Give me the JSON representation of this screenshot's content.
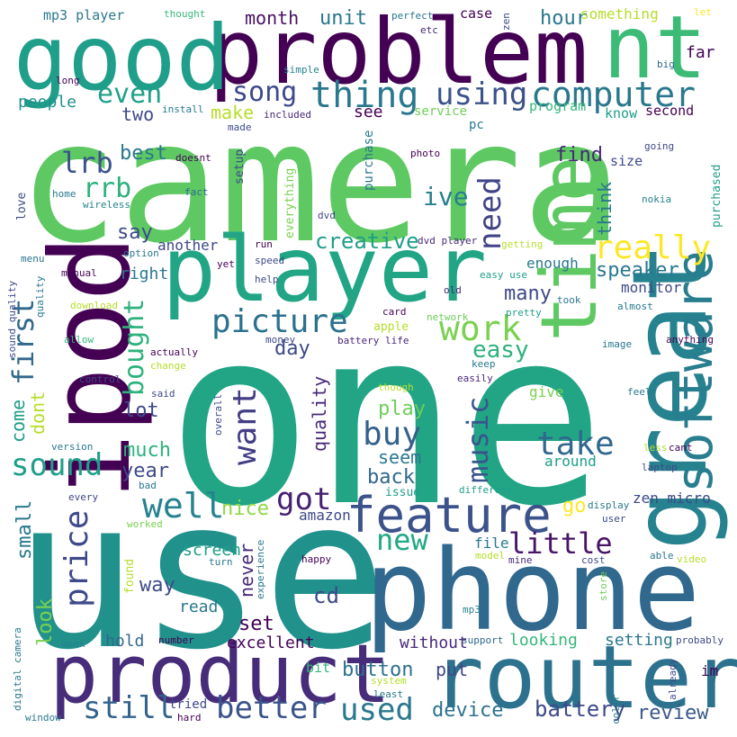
{
  "palette": {
    "background": "#ffffff",
    "p1": "#440154",
    "p2": "#482878",
    "p3": "#3e4989",
    "p4": "#31688e",
    "p5": "#26828e",
    "p6": "#1f9e89",
    "p7": "#35b779",
    "p8": "#6ece58",
    "p9": "#b5de2b",
    "p10": "#fde725"
  },
  "words": [
    {
      "text": "camera",
      "color": "#5ec962"
    },
    {
      "text": "one",
      "color": "#21a585"
    },
    {
      "text": "use",
      "color": "#21918c"
    },
    {
      "text": "phone",
      "color": "#31688e"
    },
    {
      "text": "problem",
      "color": "#440154"
    },
    {
      "text": "ipod",
      "color": "#440154"
    },
    {
      "text": "player",
      "color": "#21a585"
    },
    {
      "text": "great",
      "color": "#26828e"
    },
    {
      "text": "router",
      "color": "#2c728e"
    },
    {
      "text": "product",
      "color": "#472c7a"
    },
    {
      "text": "good",
      "color": "#1f9e89"
    },
    {
      "text": "nt",
      "color": "#3bbb75"
    },
    {
      "text": "time",
      "color": "#5ec962"
    },
    {
      "text": "software",
      "color": "#287d8e"
    },
    {
      "text": "feature",
      "color": "#3b528b"
    },
    {
      "text": "thing",
      "color": "#2a788e"
    },
    {
      "text": "computer",
      "color": "#2a788e"
    },
    {
      "text": "using",
      "color": "#3b528b"
    },
    {
      "text": "really",
      "color": "#fde725"
    },
    {
      "text": "picture",
      "color": "#2c728e"
    },
    {
      "text": "work",
      "color": "#7ad151"
    },
    {
      "text": "even",
      "color": "#1fa088"
    },
    {
      "text": "song",
      "color": "#3e4989"
    },
    {
      "text": "lrb",
      "color": "#3b528b"
    },
    {
      "text": "rrb",
      "color": "#2db27d"
    },
    {
      "text": "first",
      "color": "#31688e"
    },
    {
      "text": "need",
      "color": "#414487"
    },
    {
      "text": "ive",
      "color": "#277f8e"
    },
    {
      "text": "creative",
      "color": "#1f9e89"
    },
    {
      "text": "say",
      "color": "#3e4989"
    },
    {
      "text": "bought",
      "color": "#2db27d"
    },
    {
      "text": "want",
      "color": "#433e85"
    },
    {
      "text": "music",
      "color": "#39568c"
    },
    {
      "text": "buy",
      "color": "#34618d"
    },
    {
      "text": "take",
      "color": "#31688e"
    },
    {
      "text": "easy",
      "color": "#2db27d"
    },
    {
      "text": "got",
      "color": "#482173"
    },
    {
      "text": "well",
      "color": "#26828e"
    },
    {
      "text": "sound",
      "color": "#1f9e89"
    },
    {
      "text": "price",
      "color": "#3e4989"
    },
    {
      "text": "new",
      "color": "#22a884"
    },
    {
      "text": "little",
      "color": "#481467"
    },
    {
      "text": "nice",
      "color": "#8fd744"
    },
    {
      "text": "better",
      "color": "#3b528b"
    },
    {
      "text": "still",
      "color": "#33638d"
    },
    {
      "text": "used",
      "color": "#2a788e"
    },
    {
      "text": "battery",
      "color": "#3e4989"
    },
    {
      "text": "button",
      "color": "#2d708e"
    },
    {
      "text": "device",
      "color": "#2c728e"
    },
    {
      "text": "review",
      "color": "#38588c"
    },
    {
      "text": "speaker",
      "color": "#2a788e"
    },
    {
      "text": "many",
      "color": "#3e4989"
    },
    {
      "text": "quality",
      "color": "#482878"
    },
    {
      "text": "day",
      "color": "#3e4989"
    },
    {
      "text": "month",
      "color": "#471063"
    },
    {
      "text": "unit",
      "color": "#2a788e"
    },
    {
      "text": "hour",
      "color": "#2a788e"
    },
    {
      "text": "two",
      "color": "#3e4989"
    },
    {
      "text": "make",
      "color": "#b5de2b"
    },
    {
      "text": "people",
      "color": "#21918c"
    },
    {
      "text": "best",
      "color": "#2a788e"
    },
    {
      "text": "find",
      "color": "#482878"
    },
    {
      "text": "think",
      "color": "#2a788e"
    },
    {
      "text": "come",
      "color": "#1f9e89"
    },
    {
      "text": "dont",
      "color": "#b5de2b"
    },
    {
      "text": "lot",
      "color": "#3e4989"
    },
    {
      "text": "much",
      "color": "#2db27d"
    },
    {
      "text": "year",
      "color": "#3e4989"
    },
    {
      "text": "small",
      "color": "#2a788e"
    },
    {
      "text": "look",
      "color": "#7ad151"
    },
    {
      "text": "play",
      "color": "#6ece58"
    },
    {
      "text": "seem",
      "color": "#2a788e"
    },
    {
      "text": "back",
      "color": "#31688e"
    },
    {
      "text": "go",
      "color": "#fde725"
    },
    {
      "text": "zen micro",
      "color": "#3e4989"
    },
    {
      "text": "cd",
      "color": "#3e4989"
    },
    {
      "text": "set",
      "color": "#440154"
    },
    {
      "text": "never",
      "color": "#482878"
    },
    {
      "text": "way",
      "color": "#3e4989"
    },
    {
      "text": "read",
      "color": "#2a788e"
    },
    {
      "text": "screen",
      "color": "#1f9e89"
    },
    {
      "text": "hold",
      "color": "#31688e"
    },
    {
      "text": "excellent",
      "color": "#440154"
    },
    {
      "text": "without",
      "color": "#482878"
    },
    {
      "text": "looking",
      "color": "#35b779"
    },
    {
      "text": "setting",
      "color": "#2a788e"
    },
    {
      "text": "put",
      "color": "#3e4989"
    },
    {
      "text": "file",
      "color": "#2a788e"
    },
    {
      "text": "amazon",
      "color": "#3e4989"
    },
    {
      "text": "around",
      "color": "#1f9e89"
    },
    {
      "text": "give",
      "color": "#7ad151"
    },
    {
      "text": "enough",
      "color": "#2a788e"
    },
    {
      "text": "monitor",
      "color": "#3e4989"
    },
    {
      "text": "right",
      "color": "#2a788e"
    },
    {
      "text": "another",
      "color": "#3e4989"
    },
    {
      "text": "mp3 player",
      "color": "#2a788e"
    },
    {
      "text": "thought",
      "color": "#35b779"
    },
    {
      "text": "perfect",
      "color": "#2a788e"
    },
    {
      "text": "etc",
      "color": "#482878"
    },
    {
      "text": "case",
      "color": "#440154"
    },
    {
      "text": "zen",
      "color": "#3e4989"
    },
    {
      "text": "something",
      "color": "#b5de2b"
    },
    {
      "text": "let",
      "color": "#fde725"
    },
    {
      "text": "far",
      "color": "#440154"
    },
    {
      "text": "big",
      "color": "#31688e"
    },
    {
      "text": "simple",
      "color": "#26828e"
    },
    {
      "text": "long",
      "color": "#440154"
    },
    {
      "text": "install",
      "color": "#2a788e"
    },
    {
      "text": "included",
      "color": "#482878"
    },
    {
      "text": "see",
      "color": "#440154"
    },
    {
      "text": "service",
      "color": "#6ece58"
    },
    {
      "text": "program",
      "color": "#35b779"
    },
    {
      "text": "know",
      "color": "#1f9e89"
    },
    {
      "text": "second",
      "color": "#440154"
    },
    {
      "text": "pc",
      "color": "#2a788e"
    },
    {
      "text": "made",
      "color": "#3e4989"
    },
    {
      "text": "purchase",
      "color": "#2a788e"
    },
    {
      "text": "photo",
      "color": "#440154"
    },
    {
      "text": "size",
      "color": "#3e4989"
    },
    {
      "text": "going",
      "color": "#3e4989"
    },
    {
      "text": "purchased",
      "color": "#1f9e89"
    },
    {
      "text": "doesnt",
      "color": "#440154"
    },
    {
      "text": "setup",
      "color": "#3e4989"
    },
    {
      "text": "everything",
      "color": "#7ad151"
    },
    {
      "text": "home",
      "color": "#2a788e"
    },
    {
      "text": "fact",
      "color": "#31688e"
    },
    {
      "text": "wireless",
      "color": "#26828e"
    },
    {
      "text": "love",
      "color": "#3e4989"
    },
    {
      "text": "dvd",
      "color": "#3e4989"
    },
    {
      "text": "nokia",
      "color": "#26828e"
    },
    {
      "text": "dvd player",
      "color": "#482878"
    },
    {
      "text": "getting",
      "color": "#b5de2b"
    },
    {
      "text": "menu",
      "color": "#2a788e"
    },
    {
      "text": "option",
      "color": "#2a788e"
    },
    {
      "text": "run",
      "color": "#440154"
    },
    {
      "text": "speed",
      "color": "#3e4989"
    },
    {
      "text": "easy use",
      "color": "#1f9e89"
    },
    {
      "text": "yet",
      "color": "#440154"
    },
    {
      "text": "manual",
      "color": "#440154"
    },
    {
      "text": "help",
      "color": "#3e4989"
    },
    {
      "text": "old",
      "color": "#482878"
    },
    {
      "text": "took",
      "color": "#2a788e"
    },
    {
      "text": "card",
      "color": "#440154"
    },
    {
      "text": "almost",
      "color": "#2a788e"
    },
    {
      "text": "quality",
      "color": "#2a788e"
    },
    {
      "text": "download",
      "color": "#b5de2b"
    },
    {
      "text": "pretty",
      "color": "#1f9e89"
    },
    {
      "text": "sound quality",
      "color": "#3e4989"
    },
    {
      "text": "allow",
      "color": "#35b779"
    },
    {
      "text": "apple",
      "color": "#b5de2b"
    },
    {
      "text": "network",
      "color": "#6ece58"
    },
    {
      "text": "money",
      "color": "#3e4989"
    },
    {
      "text": "battery life",
      "color": "#482878"
    },
    {
      "text": "image",
      "color": "#2a788e"
    },
    {
      "text": "anything",
      "color": "#440154"
    },
    {
      "text": "actually",
      "color": "#440154"
    },
    {
      "text": "change",
      "color": "#b5de2b"
    },
    {
      "text": "keep",
      "color": "#2a788e"
    },
    {
      "text": "easily",
      "color": "#482878"
    },
    {
      "text": "control",
      "color": "#3e4989"
    },
    {
      "text": "said",
      "color": "#3e4989"
    },
    {
      "text": "overall",
      "color": "#3e4989"
    },
    {
      "text": "though",
      "color": "#b5de2b"
    },
    {
      "text": "feel",
      "color": "#2a788e"
    },
    {
      "text": "version",
      "color": "#2a788e"
    },
    {
      "text": "less",
      "color": "#b5de2b"
    },
    {
      "text": "cant",
      "color": "#440154"
    },
    {
      "text": "laptop",
      "color": "#3e4989"
    },
    {
      "text": "bad",
      "color": "#2a788e"
    },
    {
      "text": "issue",
      "color": "#1f9e89"
    },
    {
      "text": "different",
      "color": "#1f9e89"
    },
    {
      "text": "every",
      "color": "#3e4989"
    },
    {
      "text": "display",
      "color": "#2a788e"
    },
    {
      "text": "user",
      "color": "#3e4989"
    },
    {
      "text": "worked",
      "color": "#7ad151"
    },
    {
      "text": "happy",
      "color": "#440154"
    },
    {
      "text": "model",
      "color": "#b5de2b"
    },
    {
      "text": "mine",
      "color": "#482878"
    },
    {
      "text": "cost",
      "color": "#3e4989"
    },
    {
      "text": "able",
      "color": "#2a788e"
    },
    {
      "text": "video",
      "color": "#b5de2b"
    },
    {
      "text": "turn",
      "color": "#2a788e"
    },
    {
      "text": "found",
      "color": "#b5de2b"
    },
    {
      "text": "experience",
      "color": "#2a788e"
    },
    {
      "text": "store",
      "color": "#6ece58"
    },
    {
      "text": "mp3",
      "color": "#26828e"
    },
    {
      "text": "number",
      "color": "#440154"
    },
    {
      "text": "support",
      "color": "#31688e"
    },
    {
      "text": "week",
      "color": "#26828e"
    },
    {
      "text": "probably",
      "color": "#3e4989"
    },
    {
      "text": "digital camera",
      "color": "#2a788e"
    },
    {
      "text": "bit",
      "color": "#35b779"
    },
    {
      "text": "im",
      "color": "#440154"
    },
    {
      "text": "system",
      "color": "#b5de2b"
    },
    {
      "text": "least",
      "color": "#2a788e"
    },
    {
      "text": "color",
      "color": "#26828e"
    },
    {
      "text": "already",
      "color": "#3e4989"
    },
    {
      "text": "tried",
      "color": "#3e4989"
    },
    {
      "text": "hard",
      "color": "#440154"
    },
    {
      "text": "window",
      "color": "#2a788e"
    }
  ]
}
